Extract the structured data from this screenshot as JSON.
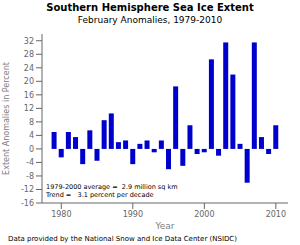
{
  "chart_data": {
    "type": "bar",
    "title": "Southern Hemisphere Sea Ice Extent",
    "subtitle": "February Anomalies, 1979-2010",
    "x": [
      1979,
      1980,
      1981,
      1982,
      1983,
      1984,
      1985,
      1986,
      1987,
      1988,
      1989,
      1990,
      1991,
      1992,
      1993,
      1994,
      1995,
      1996,
      1997,
      1998,
      1999,
      2000,
      2001,
      2002,
      2003,
      2004,
      2005,
      2006,
      2007,
      2008,
      2009,
      2010
    ],
    "values": [
      5.0,
      -2.5,
      5.0,
      3.5,
      -4.5,
      5.5,
      -3.5,
      8.5,
      10.5,
      2.0,
      2.5,
      -4.5,
      1.5,
      2.5,
      -1.0,
      2.5,
      -6.0,
      18.5,
      -5.0,
      7.0,
      -1.5,
      -1.0,
      26.5,
      -2.0,
      31.5,
      22.0,
      1.5,
      -10.0,
      31.5,
      3.5,
      -1.5,
      7.0
    ],
    "color": "#0000cc",
    "xlabel": "Year",
    "ylabel": "Extent Anomalies in Percent",
    "xlim": [
      1977.3,
      2011.7
    ],
    "xticks": [
      1980,
      1990,
      2000,
      2010
    ],
    "ylim": [
      -16,
      34
    ],
    "yticks": [
      -16,
      -12,
      -8,
      -4,
      0,
      4,
      8,
      12,
      16,
      20,
      24,
      28,
      32
    ],
    "grid": false,
    "annotations": [
      "1979-2000 average =  2.9 million sq km",
      "Trend =   3.1 percent per decade"
    ],
    "footer": "Data provided by the National Snow and Ice Data Center (NSIDC)"
  }
}
